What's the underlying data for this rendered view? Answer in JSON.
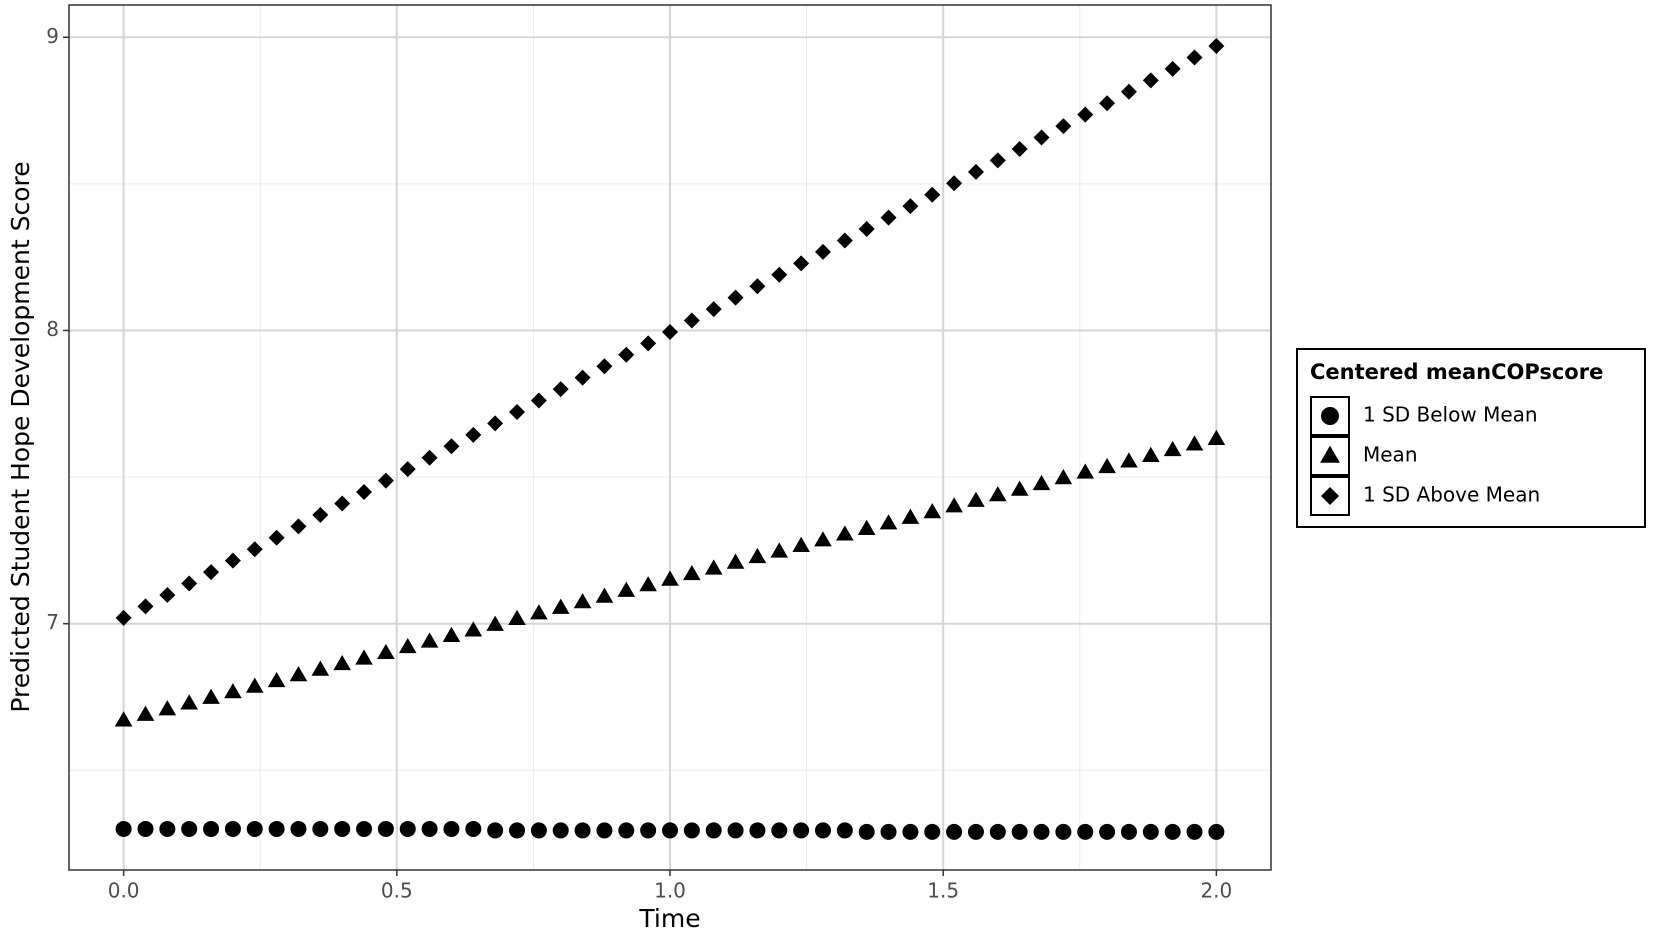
{
  "chart_data": {
    "type": "scatter",
    "x_label": "Time",
    "y_label": "Predicted Student Hope Development Score",
    "legend_title": "Centered meanCOPscore",
    "legend": "right",
    "grid": true,
    "xlim": [
      -0.1,
      2.1
    ],
    "ylim": [
      6.16,
      9.11
    ],
    "xticks": [
      {
        "value": 0,
        "label": "0.0"
      },
      0.5,
      {
        "value": 1,
        "label": "1.0"
      },
      1.5,
      {
        "value": 2,
        "label": "2.0"
      }
    ],
    "yticks": [
      7,
      8,
      9
    ],
    "minor_xticks": [
      0.25,
      0.75,
      1.25,
      1.75
    ],
    "minor_yticks": [
      6.5,
      7.5,
      8.5
    ],
    "x": [
      0,
      0.04,
      0.08,
      0.12,
      0.16,
      0.2,
      0.24,
      0.28,
      0.32,
      0.36,
      0.4,
      0.44,
      0.48,
      0.52,
      0.56,
      0.6,
      0.64,
      0.68,
      0.72,
      0.76,
      0.8,
      0.84,
      0.88,
      0.92,
      0.96,
      1,
      1.04,
      1.08,
      1.12,
      1.16,
      1.2,
      1.24,
      1.28,
      1.32,
      1.36,
      1.4,
      1.44,
      1.48,
      1.52,
      1.56,
      1.6,
      1.64,
      1.68,
      1.72,
      1.76,
      1.8,
      1.84,
      1.88,
      1.92,
      1.96,
      2
    ],
    "series": [
      {
        "name": "1 SD Below Mean",
        "color": "#000000",
        "marker": "circle",
        "values": [
          6.3,
          6.3,
          6.3,
          6.3,
          6.3,
          6.3,
          6.3,
          6.3,
          6.3,
          6.3,
          6.3,
          6.3,
          6.3,
          6.3,
          6.3,
          6.3,
          6.3,
          6.295,
          6.295,
          6.295,
          6.295,
          6.295,
          6.295,
          6.295,
          6.295,
          6.295,
          6.295,
          6.295,
          6.295,
          6.295,
          6.295,
          6.295,
          6.295,
          6.295,
          6.29,
          6.29,
          6.29,
          6.29,
          6.29,
          6.29,
          6.29,
          6.29,
          6.29,
          6.29,
          6.29,
          6.29,
          6.29,
          6.29,
          6.29,
          6.29,
          6.29
        ]
      },
      {
        "name": "Mean",
        "color": "#000000",
        "marker": "triangle",
        "values": [
          6.67,
          6.689,
          6.708,
          6.728,
          6.747,
          6.766,
          6.785,
          6.804,
          6.824,
          6.843,
          6.862,
          6.881,
          6.9,
          6.92,
          6.939,
          6.958,
          6.977,
          6.996,
          7.016,
          7.035,
          7.054,
          7.073,
          7.092,
          7.112,
          7.131,
          7.15,
          7.169,
          7.188,
          7.208,
          7.227,
          7.246,
          7.265,
          7.284,
          7.304,
          7.323,
          7.342,
          7.361,
          7.38,
          7.4,
          7.419,
          7.438,
          7.457,
          7.476,
          7.496,
          7.515,
          7.534,
          7.553,
          7.572,
          7.592,
          7.611,
          7.63
        ]
      },
      {
        "name": "1 SD Above Mean",
        "color": "#000000",
        "marker": "diamond",
        "values": [
          7.02,
          7.059,
          7.098,
          7.137,
          7.176,
          7.215,
          7.254,
          7.293,
          7.332,
          7.371,
          7.41,
          7.449,
          7.488,
          7.527,
          7.566,
          7.605,
          7.644,
          7.683,
          7.722,
          7.761,
          7.8,
          7.839,
          7.878,
          7.917,
          7.956,
          7.995,
          8.034,
          8.073,
          8.112,
          8.151,
          8.19,
          8.229,
          8.268,
          8.307,
          8.346,
          8.385,
          8.424,
          8.463,
          8.502,
          8.541,
          8.58,
          8.619,
          8.658,
          8.697,
          8.736,
          8.775,
          8.814,
          8.853,
          8.892,
          8.931,
          8.97
        ]
      }
    ]
  }
}
